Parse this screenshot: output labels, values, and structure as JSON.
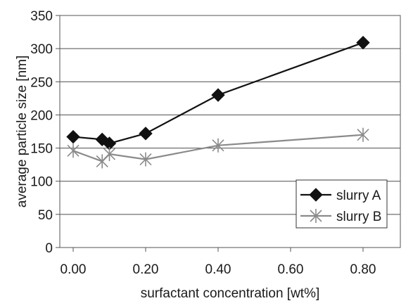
{
  "chart_data": {
    "type": "line",
    "xlabel": "surfactant concentration [wt%]",
    "ylabel": "average particle size [nm]",
    "xlim": [
      0,
      0.9
    ],
    "ylim": [
      0,
      350
    ],
    "x_ticks": [
      "0.00",
      "0.20",
      "0.40",
      "0.60",
      "0.80"
    ],
    "y_ticks": [
      "0",
      "50",
      "100",
      "150",
      "200",
      "250",
      "300",
      "350"
    ],
    "grid": "horizontal",
    "legend_position": "bottom-right",
    "series": [
      {
        "name": "slurry A",
        "marker": "diamond",
        "color": "#111111",
        "x": [
          0.0,
          0.08,
          0.1,
          0.2,
          0.4,
          0.8
        ],
        "y": [
          167,
          163,
          157,
          172,
          230,
          309
        ]
      },
      {
        "name": "slurry B",
        "marker": "asterisk",
        "color": "#8a8a8a",
        "x": [
          0.0,
          0.08,
          0.1,
          0.2,
          0.4,
          0.8
        ],
        "y": [
          146,
          130,
          141,
          133,
          154,
          170
        ]
      }
    ]
  }
}
